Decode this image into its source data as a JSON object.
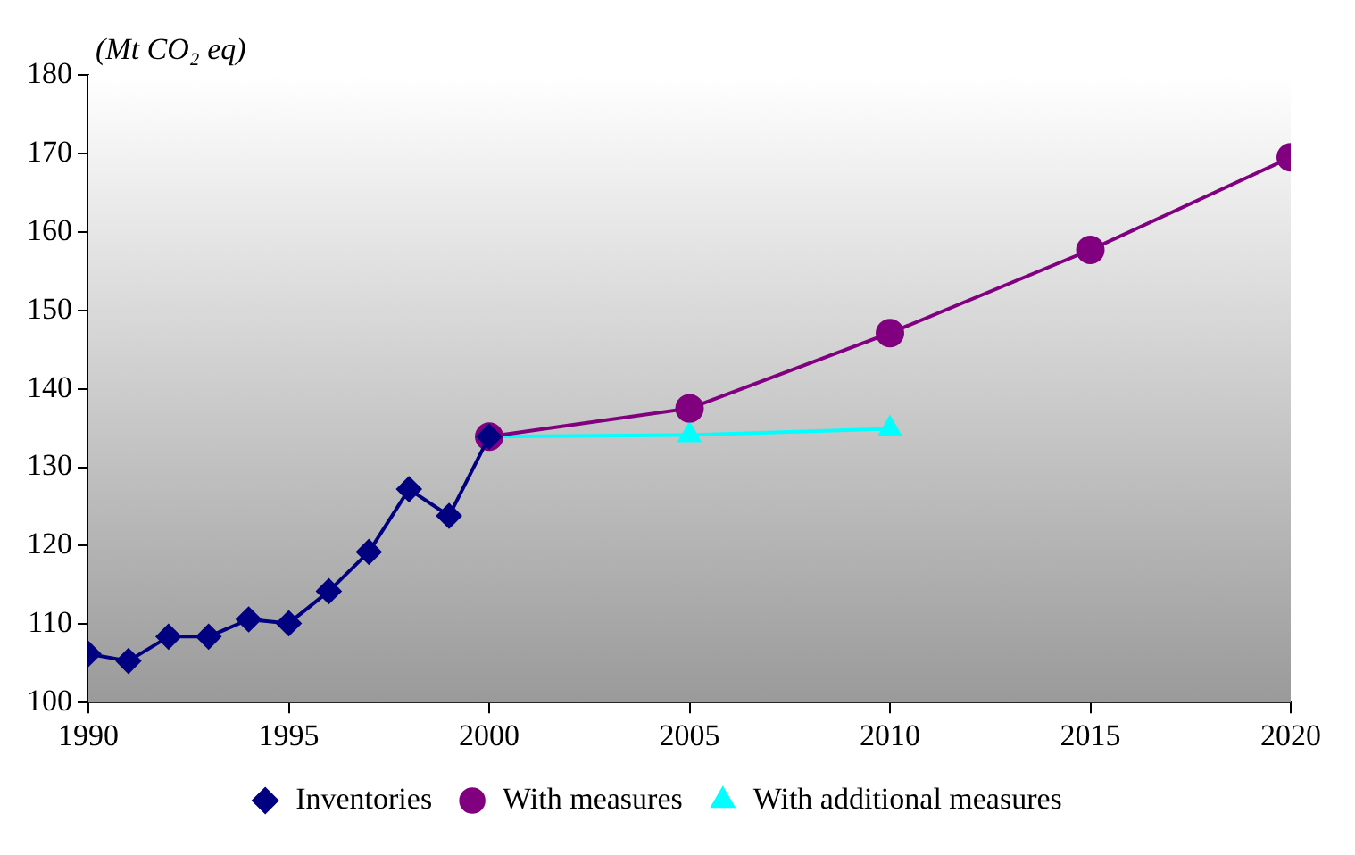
{
  "chart_data": {
    "type": "line",
    "ylabel": "(Mt CO₂ eq)",
    "xlim": [
      1990,
      2020
    ],
    "xticks": [
      1990,
      1995,
      2000,
      2005,
      2010,
      2015,
      2020
    ],
    "ylim": [
      100,
      180
    ],
    "yticks": [
      100,
      110,
      120,
      130,
      140,
      150,
      160,
      170,
      180
    ],
    "grid": false,
    "legend": "bottom",
    "line_style": "solid",
    "series": [
      {
        "name": "Inventories",
        "color": "#000080",
        "marker": "diamond",
        "x": [
          1990,
          1991,
          1992,
          1993,
          1994,
          1995,
          1996,
          1997,
          1998,
          1999,
          2000
        ],
        "values": [
          106.2,
          105.3,
          108.4,
          108.4,
          110.6,
          110.1,
          114.2,
          119.2,
          127.2,
          123.8,
          133.9
        ]
      },
      {
        "name": "With measures",
        "color": "#800080",
        "marker": "circle",
        "x": [
          2000,
          2005,
          2010,
          2015,
          2020
        ],
        "values": [
          133.9,
          137.5,
          147.1,
          157.7,
          169.5
        ]
      },
      {
        "name": "With additional measures",
        "color": "#00ffff",
        "marker": "triangle",
        "x": [
          2000,
          2005,
          2010
        ],
        "values": [
          133.9,
          134.1,
          134.9
        ]
      }
    ]
  }
}
